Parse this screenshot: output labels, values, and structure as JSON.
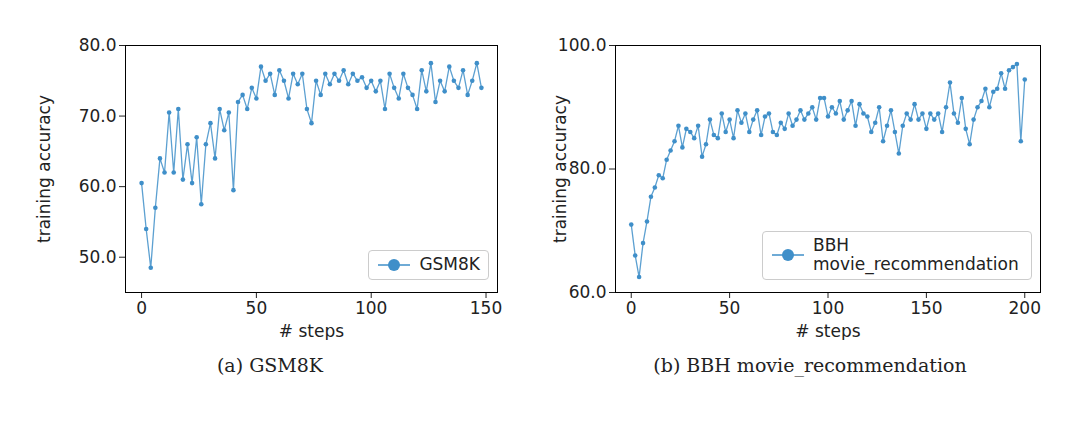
{
  "chart_data": [
    {
      "type": "line",
      "caption": "(a) GSM8K",
      "xlabel": "# steps",
      "ylabel": "training accuracy",
      "xlim": [
        -7,
        155
      ],
      "xticks": [
        0,
        50,
        100,
        150
      ],
      "ylim": [
        45,
        80
      ],
      "yticks": [
        {
          "value": 50,
          "label": "50.0"
        },
        {
          "value": 60,
          "label": "60.0"
        },
        {
          "value": 70,
          "label": "70.0"
        },
        {
          "value": 80,
          "label": "80.0"
        }
      ],
      "legend": "lower right",
      "grid": false,
      "x": [
        0,
        2,
        4,
        6,
        8,
        10,
        12,
        14,
        16,
        18,
        20,
        22,
        24,
        26,
        28,
        30,
        32,
        34,
        36,
        38,
        40,
        42,
        44,
        46,
        48,
        50,
        52,
        54,
        56,
        58,
        60,
        62,
        64,
        66,
        68,
        70,
        72,
        74,
        76,
        78,
        80,
        82,
        84,
        86,
        88,
        90,
        92,
        94,
        96,
        98,
        100,
        102,
        104,
        106,
        108,
        110,
        112,
        114,
        116,
        118,
        120,
        122,
        124,
        126,
        128,
        130,
        132,
        134,
        136,
        138,
        140,
        142,
        144,
        146,
        148
      ],
      "series": [
        {
          "name": "GSM8K",
          "color": "#3f8fc9",
          "marker": "o",
          "line_style": "solid",
          "values": [
            60.5,
            54,
            48.5,
            57,
            64,
            62,
            70.5,
            62,
            71,
            61,
            66,
            60.5,
            67,
            57.5,
            66,
            69,
            64,
            71,
            68,
            70.5,
            59.5,
            72,
            73,
            71,
            74,
            72.5,
            77,
            75,
            76,
            73,
            76.5,
            75,
            72.5,
            76,
            74.5,
            76,
            71,
            69,
            75,
            73,
            76,
            74.5,
            76,
            75,
            76.5,
            74.5,
            76,
            75,
            75.5,
            74,
            75,
            73.5,
            75,
            71,
            76,
            74,
            72.5,
            76,
            74,
            73,
            71,
            76.5,
            73.5,
            77.5,
            72,
            75,
            73.5,
            77,
            75,
            74,
            76.5,
            73,
            75,
            77.5,
            74
          ]
        }
      ]
    },
    {
      "type": "line",
      "caption": "(b) BBH movie_recommendation",
      "xlabel": "# steps",
      "ylabel": "training accuracy",
      "xlim": [
        -8,
        208
      ],
      "xticks": [
        0,
        50,
        100,
        150,
        200
      ],
      "ylim": [
        60,
        100
      ],
      "yticks": [
        {
          "value": 60,
          "label": "60.0"
        },
        {
          "value": 80,
          "label": "80.0"
        },
        {
          "value": 100,
          "label": "100.0"
        }
      ],
      "legend": "lower right",
      "grid": false,
      "x": [
        0,
        2,
        4,
        6,
        8,
        10,
        12,
        14,
        16,
        18,
        20,
        22,
        24,
        26,
        28,
        30,
        32,
        34,
        36,
        38,
        40,
        42,
        44,
        46,
        48,
        50,
        52,
        54,
        56,
        58,
        60,
        62,
        64,
        66,
        68,
        70,
        72,
        74,
        76,
        78,
        80,
        82,
        84,
        86,
        88,
        90,
        92,
        94,
        96,
        98,
        100,
        102,
        104,
        106,
        108,
        110,
        112,
        114,
        116,
        118,
        120,
        122,
        124,
        126,
        128,
        130,
        132,
        134,
        136,
        138,
        140,
        142,
        144,
        146,
        148,
        150,
        152,
        154,
        156,
        158,
        160,
        162,
        164,
        166,
        168,
        170,
        172,
        174,
        176,
        178,
        180,
        182,
        184,
        186,
        188,
        190,
        192,
        194,
        196,
        198,
        200
      ],
      "series": [
        {
          "name": "BBH movie_recommendation",
          "color": "#3f8fc9",
          "marker": "o",
          "line_style": "solid",
          "values": [
            71,
            66,
            62.5,
            68,
            71.5,
            75.5,
            77,
            79,
            78.5,
            81.5,
            83,
            84.5,
            87,
            83.5,
            86.5,
            86,
            85,
            87,
            82,
            84,
            88,
            85.5,
            85,
            89,
            86,
            88,
            85,
            89.5,
            87.5,
            89,
            86,
            88,
            89.5,
            85.5,
            88.5,
            89,
            86,
            85.5,
            87.5,
            86.5,
            89,
            87,
            88,
            89.5,
            88,
            89,
            90,
            88,
            91.5,
            91.5,
            88.5,
            90,
            89,
            91,
            88,
            89.5,
            91,
            87,
            90.5,
            89,
            88.5,
            86,
            87.5,
            90,
            84.5,
            87,
            89.5,
            86,
            82.5,
            87,
            89,
            88,
            90.5,
            88,
            89,
            86.5,
            89,
            88,
            89,
            86,
            90,
            94,
            89,
            87.5,
            91.5,
            86.5,
            84,
            88,
            90,
            91,
            93,
            90,
            92.5,
            93,
            95.5,
            93,
            96,
            96.5,
            97,
            84.5,
            94.5
          ]
        }
      ]
    }
  ]
}
